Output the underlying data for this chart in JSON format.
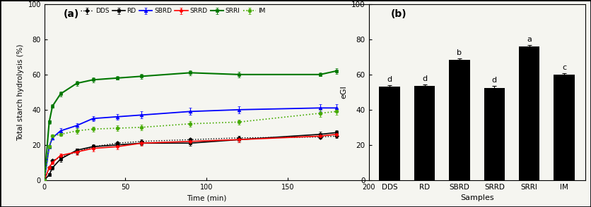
{
  "line_xdata": [
    0,
    3,
    5,
    10,
    20,
    30,
    45,
    60,
    90,
    120,
    170,
    180
  ],
  "DDS": [
    0,
    7,
    11,
    13,
    16,
    19,
    21,
    22,
    23,
    24,
    24.5,
    25
  ],
  "DDS_err": [
    0,
    0.8,
    1,
    1,
    1.2,
    1,
    1,
    1,
    1,
    1,
    1,
    1
  ],
  "RD": [
    0,
    3,
    7,
    12,
    17,
    19,
    20,
    21,
    21,
    23,
    26,
    27
  ],
  "RD_err": [
    0,
    0.8,
    1,
    1.5,
    1,
    1.2,
    1,
    1,
    1.5,
    1.5,
    1.5,
    1.5
  ],
  "SBRD": [
    0,
    19,
    24,
    28,
    31,
    35,
    36,
    37,
    39,
    40,
    41,
    41
  ],
  "SBRD_err": [
    0,
    1,
    1,
    1.5,
    1.5,
    1.5,
    1.5,
    2,
    2,
    2,
    2,
    2
  ],
  "SRRD": [
    0,
    7,
    10,
    14,
    16,
    18,
    19,
    21,
    22,
    23,
    25,
    26
  ],
  "SRRD_err": [
    0,
    0.8,
    1,
    1,
    1.5,
    1.5,
    1.5,
    1.5,
    1.5,
    1.5,
    1.5,
    1.5
  ],
  "SRRI": [
    0,
    33,
    42,
    49,
    55,
    57,
    58,
    59,
    61,
    60,
    60,
    62
  ],
  "SRRI_err": [
    0,
    1,
    1,
    1.5,
    1.5,
    1.5,
    1,
    1.5,
    1.5,
    1.5,
    1,
    1.5
  ],
  "IM": [
    0,
    19,
    25,
    26,
    28,
    29,
    29.5,
    30,
    32,
    33,
    38,
    39
  ],
  "IM_err": [
    0,
    1,
    1,
    1,
    1.5,
    1.5,
    1.5,
    1.5,
    1.5,
    1.5,
    2,
    2
  ],
  "bar_categories": [
    "DDS",
    "RD",
    "SBRD",
    "SRRD",
    "SRRI",
    "IM"
  ],
  "bar_values": [
    53.0,
    53.5,
    68.5,
    52.5,
    76.0,
    60.0
  ],
  "bar_errors": [
    1.0,
    1.0,
    0.8,
    1.0,
    0.8,
    0.8
  ],
  "bar_labels": [
    "d",
    "d",
    "b",
    "d",
    "a",
    "c"
  ],
  "bar_color": "#000000",
  "line_ylabel": "Total starch hydrolysis (%)",
  "line_xlabel": "Time (min)",
  "bar_ylabel": "eGI",
  "bar_xlabel": "Samples",
  "panel_a": "(a)",
  "panel_b": "(b)",
  "line_ylim": [
    0,
    100
  ],
  "line_xlim": [
    0,
    200
  ],
  "bar_ylim": [
    0,
    100
  ],
  "bg_color": "#f5f5f0"
}
